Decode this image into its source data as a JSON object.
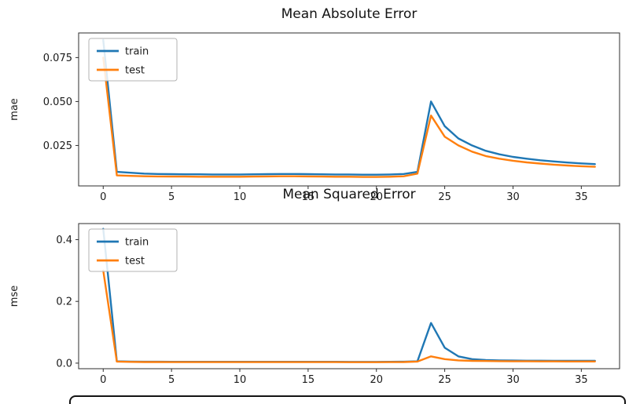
{
  "colors": {
    "train": "#1f77b4",
    "test": "#ff7f0e",
    "spine": "#2e2e2e",
    "legend_border": "#b3b3b3"
  },
  "chart_data": [
    {
      "type": "line",
      "title": "Mean Absolute Error",
      "xlabel": "",
      "ylabel": "mae",
      "legend_position": "upper left",
      "grid": false,
      "xlim": [
        -1.8,
        37.8
      ],
      "ylim": [
        0.002,
        0.089
      ],
      "xticks": [
        0,
        5,
        10,
        15,
        20,
        25,
        30,
        35
      ],
      "yticks": [
        0.025,
        0.05,
        0.075
      ],
      "ytick_labels": [
        "0.025",
        "0.050",
        "0.075"
      ],
      "x": [
        0,
        1,
        2,
        3,
        4,
        5,
        6,
        7,
        8,
        9,
        10,
        11,
        12,
        13,
        14,
        15,
        16,
        17,
        18,
        19,
        20,
        21,
        22,
        23,
        24,
        25,
        26,
        27,
        28,
        29,
        30,
        31,
        32,
        33,
        34,
        35,
        36
      ],
      "series": [
        {
          "name": "train",
          "color": "#1f77b4",
          "values": [
            0.085,
            0.01,
            0.0095,
            0.009,
            0.0088,
            0.0087,
            0.0086,
            0.0086,
            0.0085,
            0.0085,
            0.0085,
            0.0086,
            0.0087,
            0.0088,
            0.0088,
            0.0087,
            0.0086,
            0.0085,
            0.0085,
            0.0084,
            0.0084,
            0.0085,
            0.0088,
            0.01,
            0.05,
            0.036,
            0.029,
            0.025,
            0.022,
            0.02,
            0.0185,
            0.0175,
            0.0166,
            0.0159,
            0.0153,
            0.0148,
            0.0144
          ]
        },
        {
          "name": "test",
          "color": "#ff7f0e",
          "values": [
            0.075,
            0.008,
            0.0077,
            0.0075,
            0.0074,
            0.0073,
            0.0073,
            0.0072,
            0.0072,
            0.0072,
            0.0072,
            0.0073,
            0.0074,
            0.0075,
            0.0075,
            0.0074,
            0.0073,
            0.0072,
            0.0072,
            0.0071,
            0.0071,
            0.0072,
            0.0075,
            0.009,
            0.042,
            0.03,
            0.025,
            0.0215,
            0.019,
            0.0175,
            0.0163,
            0.0154,
            0.0147,
            0.0141,
            0.0136,
            0.0132,
            0.0129
          ]
        }
      ]
    },
    {
      "type": "line",
      "title": "Mean Squared Error",
      "xlabel": "",
      "ylabel": "mse",
      "legend_position": "upper left",
      "grid": false,
      "xlim": [
        -1.8,
        37.8
      ],
      "ylim": [
        -0.018,
        0.452
      ],
      "xticks": [
        0,
        5,
        10,
        15,
        20,
        25,
        30,
        35
      ],
      "yticks": [
        0,
        0.2,
        0.4
      ],
      "ytick_labels": [
        "0.0",
        "0.2",
        "0.4"
      ],
      "x": [
        0,
        1,
        2,
        3,
        4,
        5,
        6,
        7,
        8,
        9,
        10,
        11,
        12,
        13,
        14,
        15,
        16,
        17,
        18,
        19,
        20,
        21,
        22,
        23,
        24,
        25,
        26,
        27,
        28,
        29,
        30,
        31,
        32,
        33,
        34,
        35,
        36
      ],
      "series": [
        {
          "name": "train",
          "color": "#1f77b4",
          "values": [
            0.435,
            0.006,
            0.005,
            0.0046,
            0.0045,
            0.0044,
            0.0044,
            0.0043,
            0.0043,
            0.0043,
            0.0043,
            0.0043,
            0.0044,
            0.0044,
            0.0044,
            0.0043,
            0.0043,
            0.0043,
            0.0042,
            0.0042,
            0.0042,
            0.0043,
            0.0045,
            0.006,
            0.13,
            0.05,
            0.022,
            0.013,
            0.01,
            0.009,
            0.0085,
            0.008,
            0.0078,
            0.0076,
            0.0075,
            0.0074,
            0.0073
          ]
        },
        {
          "name": "test",
          "color": "#ff7f0e",
          "values": [
            0.3,
            0.005,
            0.004,
            0.0036,
            0.0035,
            0.0034,
            0.0034,
            0.0033,
            0.0033,
            0.0033,
            0.0033,
            0.0033,
            0.0034,
            0.0034,
            0.0034,
            0.0033,
            0.0033,
            0.0033,
            0.0032,
            0.0032,
            0.0032,
            0.0033,
            0.0035,
            0.005,
            0.022,
            0.013,
            0.009,
            0.0075,
            0.0068,
            0.0063,
            0.006,
            0.0058,
            0.0057,
            0.0056,
            0.0055,
            0.0055,
            0.0054
          ]
        }
      ]
    }
  ]
}
